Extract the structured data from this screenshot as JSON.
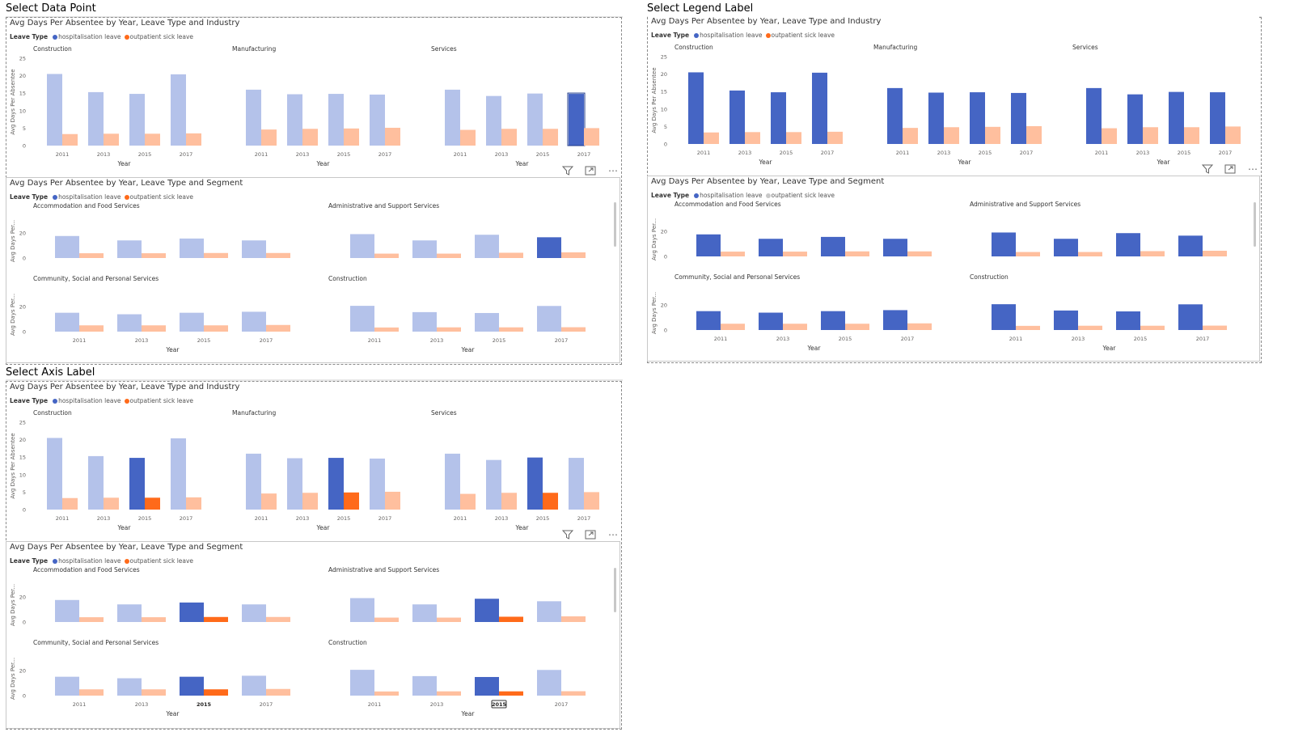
{
  "colors": {
    "hosp": "#4565C4",
    "hosp_faded": "#B4C2EA",
    "out": "#FF6A1A",
    "out_faded": "#FFBF9E",
    "out_grey": "#C8C8C8"
  },
  "sections": {
    "data_point": "Select Data Point",
    "legend_label": "Select Legend Label",
    "axis_label": "Select Axis Label"
  },
  "common": {
    "industry_title": "Avg Days Per Absentee by Year, Leave Type and Industry",
    "segment_title": "Avg Days Per Absentee by Year, Leave Type and Segment",
    "legend_title": "Leave Type",
    "legend_hosp": "hospitalisation leave",
    "legend_out": "outpatient sick leave",
    "x_axis_title": "Year",
    "y_axis_title_industry": "Avg Days Per Absentee",
    "y_axis_title_segment": "Avg Days Per...",
    "industry_ticks": [
      "0",
      "5",
      "10",
      "15",
      "20",
      "25"
    ],
    "segment_ticks": [
      "0",
      "20"
    ],
    "toolbar": {
      "filter_icon": "filter-icon",
      "focus_icon": "focus-mode-icon",
      "more": "⋯"
    }
  },
  "chart_data": [
    {
      "type": "bar",
      "name": "industry",
      "years": [
        "2011",
        "2013",
        "2015",
        "2017"
      ],
      "ylim": [
        0,
        25
      ],
      "facets": [
        {
          "label": "Construction",
          "hosp": [
            20.5,
            15.3,
            14.8,
            20.4
          ],
          "out": [
            3.3,
            3.4,
            3.4,
            3.5
          ]
        },
        {
          "label": "Manufacturing",
          "hosp": [
            16.0,
            14.7,
            14.8,
            14.6
          ],
          "out": [
            4.6,
            4.8,
            4.9,
            5.1
          ]
        },
        {
          "label": "Services",
          "hosp": [
            16.0,
            14.2,
            14.9,
            14.8
          ],
          "out": [
            4.5,
            4.8,
            4.8,
            5.0
          ]
        }
      ]
    },
    {
      "type": "bar",
      "name": "segment",
      "years": [
        "2011",
        "2013",
        "2015",
        "2017"
      ],
      "ylim": [
        0,
        27
      ],
      "facets": [
        {
          "label": "Accommodation and Food Services",
          "hosp": [
            17.5,
            14.0,
            15.5,
            14.0
          ],
          "out": [
            3.8,
            3.8,
            4.0,
            4.0
          ]
        },
        {
          "label": "Administrative and Support Services",
          "hosp": [
            19.0,
            14.0,
            18.5,
            16.5
          ],
          "out": [
            3.5,
            3.5,
            4.2,
            4.5
          ]
        },
        {
          "label": "Community, Social and Personal Services",
          "hosp": [
            15.0,
            13.8,
            15.0,
            15.8
          ],
          "out": [
            5.0,
            5.0,
            5.0,
            5.3
          ]
        },
        {
          "label": "Construction",
          "hosp": [
            20.5,
            15.5,
            14.8,
            20.4
          ],
          "out": [
            3.3,
            3.4,
            3.4,
            3.5
          ]
        }
      ]
    }
  ]
}
